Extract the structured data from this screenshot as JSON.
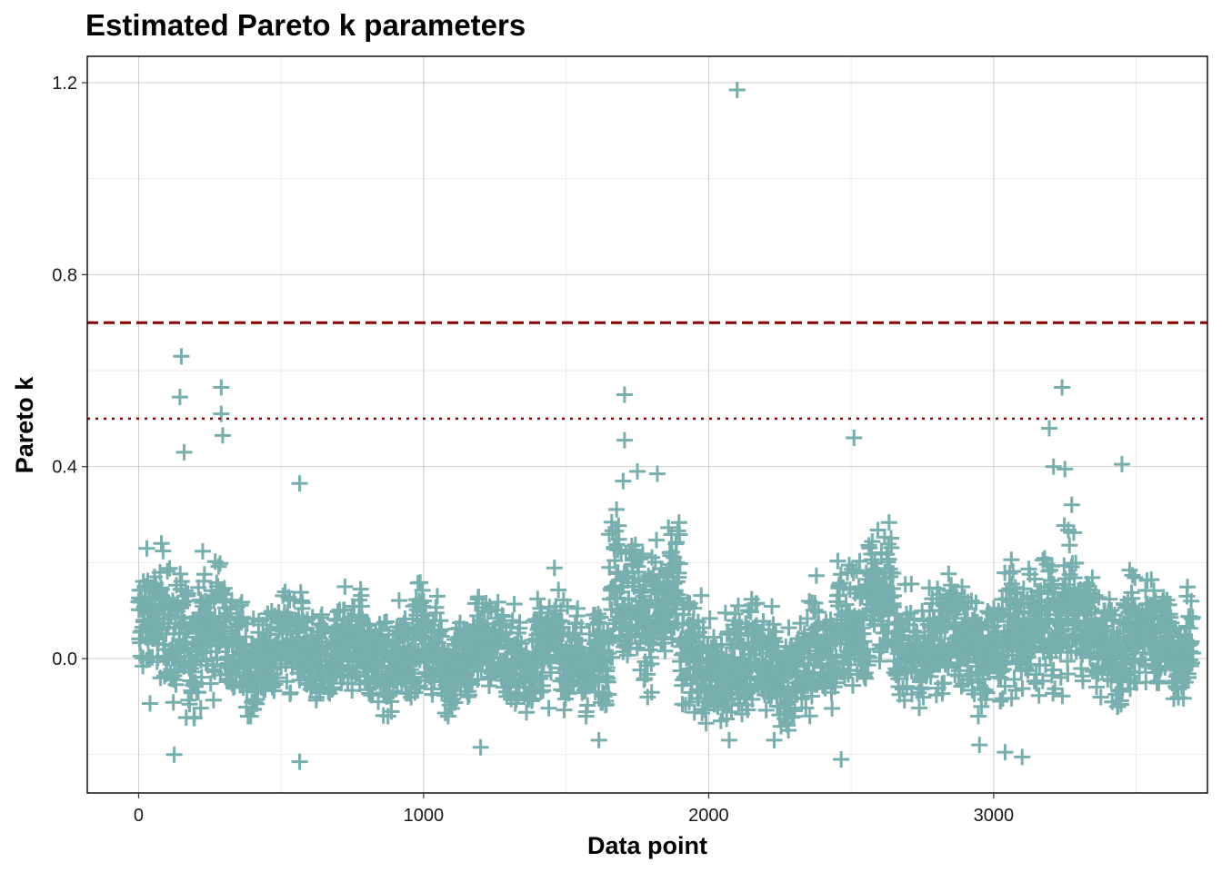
{
  "chart_data": {
    "type": "scatter",
    "title": "Estimated Pareto k parameters",
    "xlabel": "Data point",
    "ylabel": "Pareto k",
    "xlim": [
      -180,
      3750
    ],
    "ylim": [
      -0.28,
      1.255
    ],
    "x_ticks": [
      0,
      1000,
      2000,
      3000
    ],
    "x_tick_labels": [
      "0",
      "1000",
      "2000",
      "3000"
    ],
    "y_ticks": [
      0.0,
      0.4,
      0.8,
      1.2
    ],
    "y_tick_labels": [
      "0.0",
      "0.4",
      "0.8",
      "1.2"
    ],
    "grid": true,
    "marker": "plus",
    "point_color": "#77aeae",
    "n_points": 3700,
    "reference_lines": [
      {
        "y": 0.7,
        "style": "dashed",
        "color": "#8b0000"
      },
      {
        "y": 0.5,
        "style": "dotted",
        "color": "#8b0000"
      }
    ],
    "highlighted_points": [
      {
        "x": 2100,
        "y": 1.185
      },
      {
        "x": 150,
        "y": 0.63
      },
      {
        "x": 145,
        "y": 0.545
      },
      {
        "x": 290,
        "y": 0.565
      },
      {
        "x": 290,
        "y": 0.51
      },
      {
        "x": 295,
        "y": 0.465
      },
      {
        "x": 160,
        "y": 0.43
      },
      {
        "x": 1705,
        "y": 0.55
      },
      {
        "x": 1705,
        "y": 0.455
      },
      {
        "x": 3240,
        "y": 0.565
      },
      {
        "x": 3195,
        "y": 0.48
      },
      {
        "x": 2510,
        "y": 0.46
      },
      {
        "x": 3450,
        "y": 0.405
      },
      {
        "x": 3210,
        "y": 0.4
      },
      {
        "x": 3250,
        "y": 0.395
      },
      {
        "x": 1750,
        "y": 0.39
      },
      {
        "x": 1700,
        "y": 0.37
      },
      {
        "x": 565,
        "y": 0.365
      },
      {
        "x": 1820,
        "y": 0.385
      },
      {
        "x": 565,
        "y": -0.215
      },
      {
        "x": 125,
        "y": -0.2
      },
      {
        "x": 2465,
        "y": -0.21
      },
      {
        "x": 3100,
        "y": -0.205
      },
      {
        "x": 3040,
        "y": -0.195
      },
      {
        "x": 1200,
        "y": -0.185
      },
      {
        "x": 2950,
        "y": -0.18
      },
      {
        "x": 1615,
        "y": -0.17
      },
      {
        "x": 2230,
        "y": -0.17
      }
    ],
    "bulk_range_by_segment": [
      {
        "x_from": 0,
        "x_to": 300,
        "y_min": -0.13,
        "y_max": 0.3
      },
      {
        "x_from": 300,
        "y_to": null,
        "x_to": 1650,
        "y_min": -0.12,
        "y_max": 0.2
      },
      {
        "x_from": 1650,
        "x_to": 1900,
        "y_min": -0.08,
        "y_max": 0.38
      },
      {
        "x_from": 1900,
        "x_to": 2450,
        "y_min": -0.17,
        "y_max": 0.2
      },
      {
        "x_from": 2450,
        "x_to": 2650,
        "y_min": -0.1,
        "y_max": 0.36
      },
      {
        "x_from": 2650,
        "x_to": 3150,
        "y_min": -0.12,
        "y_max": 0.25
      },
      {
        "x_from": 3150,
        "x_to": 3300,
        "y_min": -0.1,
        "y_max": 0.35
      },
      {
        "x_from": 3300,
        "x_to": 3700,
        "y_min": -0.1,
        "y_max": 0.24
      }
    ]
  }
}
